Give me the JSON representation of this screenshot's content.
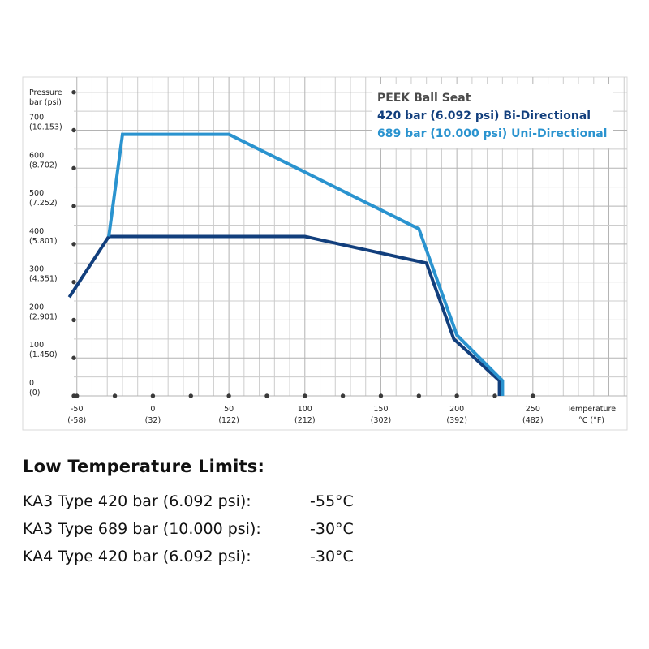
{
  "chart_data": {
    "type": "line",
    "legend": {
      "title": "PEEK Ball Seat",
      "placement": "top-right"
    },
    "x_axis": {
      "label_lines": [
        "Temperature",
        "°C (°F)"
      ],
      "range": [
        -52,
        312
      ],
      "ticks": [
        {
          "value": -50,
          "label": "-50",
          "sublabel": "(-58)"
        },
        {
          "value": -25
        },
        {
          "value": 0,
          "label": "0",
          "sublabel": "(32)"
        },
        {
          "value": 25
        },
        {
          "value": 50,
          "label": "50",
          "sublabel": "(122)"
        },
        {
          "value": 75
        },
        {
          "value": 100,
          "label": "100",
          "sublabel": "(212)"
        },
        {
          "value": 125
        },
        {
          "value": 150,
          "label": "150",
          "sublabel": "(302)"
        },
        {
          "value": 175
        },
        {
          "value": 200,
          "label": "200",
          "sublabel": "(392)"
        },
        {
          "value": 225
        },
        {
          "value": 250,
          "label": "250",
          "sublabel": "(482)"
        }
      ]
    },
    "y_axis": {
      "label_lines": [
        "Pressure",
        "bar (psi)"
      ],
      "range": [
        0,
        840
      ],
      "ticks": [
        {
          "value": 0,
          "label": "0",
          "sublabel": "(0)"
        },
        {
          "value": 100,
          "label": "100",
          "sublabel": "(1.450)"
        },
        {
          "value": 200,
          "label": "200",
          "sublabel": "(2.901)"
        },
        {
          "value": 300,
          "label": "300",
          "sublabel": "(4.351)"
        },
        {
          "value": 400,
          "label": "400",
          "sublabel": "(5.801)"
        },
        {
          "value": 500,
          "label": "500",
          "sublabel": "(7.252)"
        },
        {
          "value": 600,
          "label": "600",
          "sublabel": "(8.702)"
        },
        {
          "value": 700,
          "label": "700",
          "sublabel": "(10.153)"
        },
        {
          "value": 800
        }
      ]
    },
    "grid": true,
    "series": [
      {
        "name": "420 bar (6.092 psi) Bi-Directional",
        "color": "#123f7d",
        "points": [
          [
            -55,
            260
          ],
          [
            -29,
            420
          ],
          [
            100,
            420
          ],
          [
            180,
            350
          ],
          [
            198,
            150
          ],
          [
            228,
            40
          ],
          [
            228,
            0
          ]
        ]
      },
      {
        "name": "689 bar (10.000 psi) Uni-Directional",
        "color": "#2a93cf",
        "points": [
          [
            -29,
            420
          ],
          [
            -20,
            689
          ],
          [
            50,
            689
          ],
          [
            175,
            440
          ],
          [
            200,
            160
          ],
          [
            230,
            40
          ],
          [
            230,
            0
          ]
        ]
      }
    ]
  },
  "limits": {
    "title": "Low Temperature Limits:",
    "rows": [
      {
        "label": "KA3 Type 420 bar (6.092 psi):",
        "value": "-55°C"
      },
      {
        "label": "KA3 Type 689 bar (10.000 psi):",
        "value": "-30°C"
      },
      {
        "label": "KA4 Type 420 bar (6.092 psi):",
        "value": "-30°C"
      }
    ]
  }
}
